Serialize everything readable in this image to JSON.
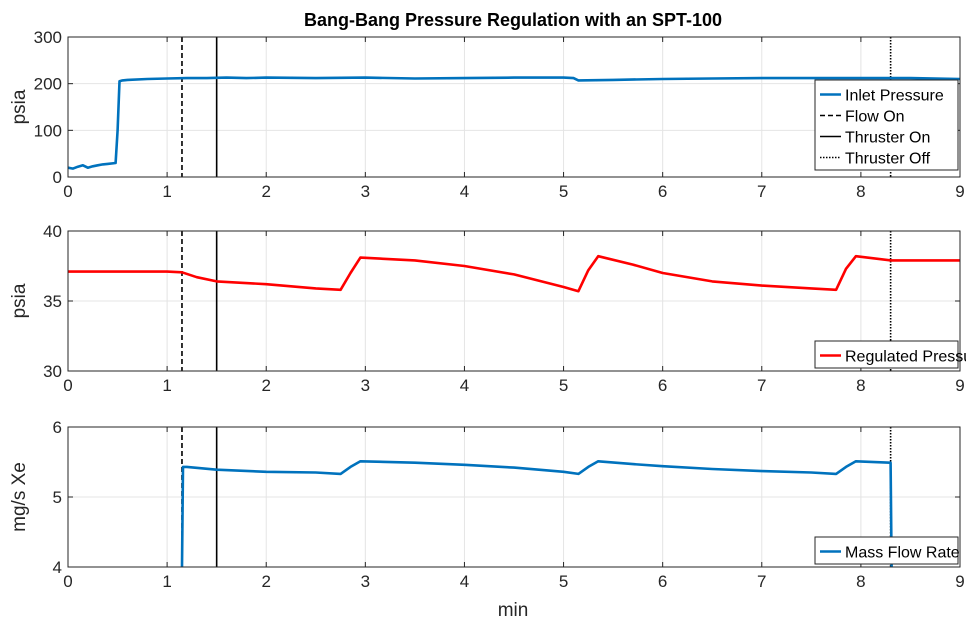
{
  "chart_data": {
    "type": "line",
    "title": "Bang-Bang Pressure Regulation with an SPT-100",
    "xlabel": "min",
    "xlim": [
      0,
      9
    ],
    "x_ticks": [
      "0",
      "1",
      "2",
      "3",
      "4",
      "5",
      "6",
      "7",
      "8",
      "9"
    ],
    "grid": true,
    "events": [
      {
        "name": "Flow On",
        "x": 1.15,
        "style": "dashed"
      },
      {
        "name": "Thruster On",
        "x": 1.5,
        "style": "solid"
      },
      {
        "name": "Thruster Off",
        "x": 8.3,
        "style": "dotted"
      }
    ],
    "panels": [
      {
        "ylabel": "psia",
        "ylim": [
          0,
          300
        ],
        "y_ticks": [
          "0",
          "100",
          "200",
          "300"
        ],
        "legend_position": "right",
        "legend": [
          "Inlet Pressure",
          "Flow On",
          "Thruster On",
          "Thruster Off"
        ],
        "series": [
          {
            "name": "Inlet Pressure",
            "color": "#0072BD",
            "x": [
              0,
              0.05,
              0.1,
              0.15,
              0.2,
              0.25,
              0.3,
              0.35,
              0.4,
              0.48,
              0.5,
              0.52,
              0.55,
              0.6,
              0.8,
              1.0,
              1.2,
              1.4,
              1.6,
              1.8,
              2.0,
              2.5,
              3.0,
              3.5,
              4.0,
              4.5,
              5.0,
              5.1,
              5.15,
              5.5,
              6.0,
              6.5,
              7.0,
              7.5,
              8.0,
              8.5,
              9.0
            ],
            "y": [
              20,
              18,
              22,
              25,
              20,
              23,
              25,
              27,
              28,
              30,
              100,
              205,
              207,
              208,
              210,
              211,
              212,
              212,
              213,
              212,
              213,
              212,
              213,
              211,
              212,
              213,
              213,
              212,
              207,
              208,
              210,
              211,
              212,
              212,
              212,
              212,
              210
            ]
          }
        ]
      },
      {
        "ylabel": "psia",
        "ylim": [
          30,
          40
        ],
        "y_ticks": [
          "30",
          "35",
          "40"
        ],
        "legend_position": "bottom-right",
        "legend": [
          "Regulated Pressure"
        ],
        "series": [
          {
            "name": "Regulated Pressure",
            "color": "#FF0000",
            "x": [
              0,
              0.5,
              1.0,
              1.15,
              1.3,
              1.5,
              2.0,
              2.5,
              2.75,
              2.85,
              2.95,
              3.5,
              4.0,
              4.5,
              5.0,
              5.15,
              5.25,
              5.35,
              5.7,
              6.0,
              6.5,
              7.0,
              7.5,
              7.75,
              7.85,
              7.95,
              8.3,
              9.0
            ],
            "y": [
              37.1,
              37.1,
              37.1,
              37.05,
              36.7,
              36.4,
              36.2,
              35.9,
              35.8,
              37.0,
              38.1,
              37.9,
              37.5,
              36.9,
              36.0,
              35.7,
              37.2,
              38.2,
              37.6,
              37.0,
              36.4,
              36.1,
              35.9,
              35.8,
              37.3,
              38.2,
              37.9,
              37.9
            ]
          }
        ]
      },
      {
        "ylabel": "mg/s Xe",
        "ylim": [
          4,
          6
        ],
        "y_ticks": [
          "4",
          "5",
          "6"
        ],
        "legend_position": "bottom-right",
        "legend": [
          "Mass Flow Rate"
        ],
        "series": [
          {
            "name": "Mass Flow Rate",
            "color": "#0072BD",
            "x": [
              1.15,
              1.16,
              1.2,
              1.5,
              2.0,
              2.5,
              2.75,
              2.85,
              2.95,
              3.5,
              4.0,
              4.5,
              5.0,
              5.15,
              5.25,
              5.35,
              5.7,
              6.0,
              6.5,
              7.0,
              7.5,
              7.75,
              7.85,
              7.95,
              8.3,
              8.31
            ],
            "y": [
              4.0,
              5.43,
              5.43,
              5.39,
              5.36,
              5.35,
              5.33,
              5.43,
              5.51,
              5.49,
              5.46,
              5.42,
              5.36,
              5.33,
              5.43,
              5.51,
              5.47,
              5.44,
              5.4,
              5.37,
              5.35,
              5.33,
              5.43,
              5.51,
              5.49,
              4.0
            ]
          }
        ]
      }
    ]
  }
}
